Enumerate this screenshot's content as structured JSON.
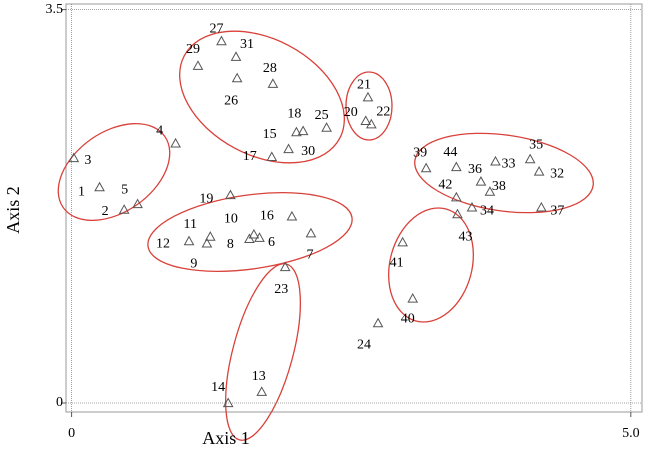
{
  "chart_data": {
    "type": "scatter",
    "xlabel": "Axis 1",
    "ylabel": "Axis 2",
    "xlim": [
      -0.05,
      5.1
    ],
    "ylim": [
      -0.08,
      3.55
    ],
    "xticks": [
      0,
      {
        "value": 5,
        "label": "5.0"
      }
    ],
    "yticks": [
      0,
      3.5
    ],
    "color": "#555555",
    "group_color": "#d9413a",
    "labels": [
      "1",
      "2",
      "3",
      "4",
      "5",
      "6",
      "7",
      "8",
      "9",
      "10",
      "11",
      "12",
      "13",
      "14",
      "15",
      "16",
      "17",
      "18",
      "19",
      "20",
      "21",
      "22",
      "23",
      "24",
      "25",
      "26",
      "27",
      "28",
      "29",
      "30",
      "31",
      "32",
      "33",
      "34",
      "35",
      "36",
      "37",
      "38",
      "39",
      "40",
      "41",
      "42",
      "43",
      "44"
    ],
    "x": [
      0.25,
      0.47,
      0.02,
      0.93,
      0.59,
      1.68,
      2.14,
      1.59,
      1.21,
      1.63,
      1.24,
      1.05,
      1.7,
      1.4,
      1.94,
      1.97,
      1.79,
      2.01,
      1.42,
      2.63,
      2.65,
      2.68,
      1.91,
      2.74,
      2.28,
      1.48,
      1.34,
      1.8,
      1.13,
      2.07,
      1.47,
      4.18,
      3.79,
      3.58,
      4.1,
      3.66,
      4.2,
      3.74,
      3.17,
      3.05,
      2.96,
      3.44,
      3.45,
      3.44
    ],
    "y": [
      1.92,
      1.72,
      2.18,
      2.31,
      1.77,
      1.47,
      1.51,
      1.46,
      1.42,
      1.5,
      1.48,
      1.44,
      0.1,
      0.0,
      2.26,
      1.66,
      2.19,
      2.41,
      1.85,
      2.51,
      2.72,
      2.48,
      1.21,
      0.71,
      2.45,
      2.89,
      3.22,
      2.84,
      3.0,
      2.42,
      3.08,
      2.06,
      2.15,
      1.74,
      2.17,
      1.97,
      1.74,
      1.88,
      2.09,
      0.93,
      1.43,
      1.83,
      1.68,
      2.1
    ]
  }
}
